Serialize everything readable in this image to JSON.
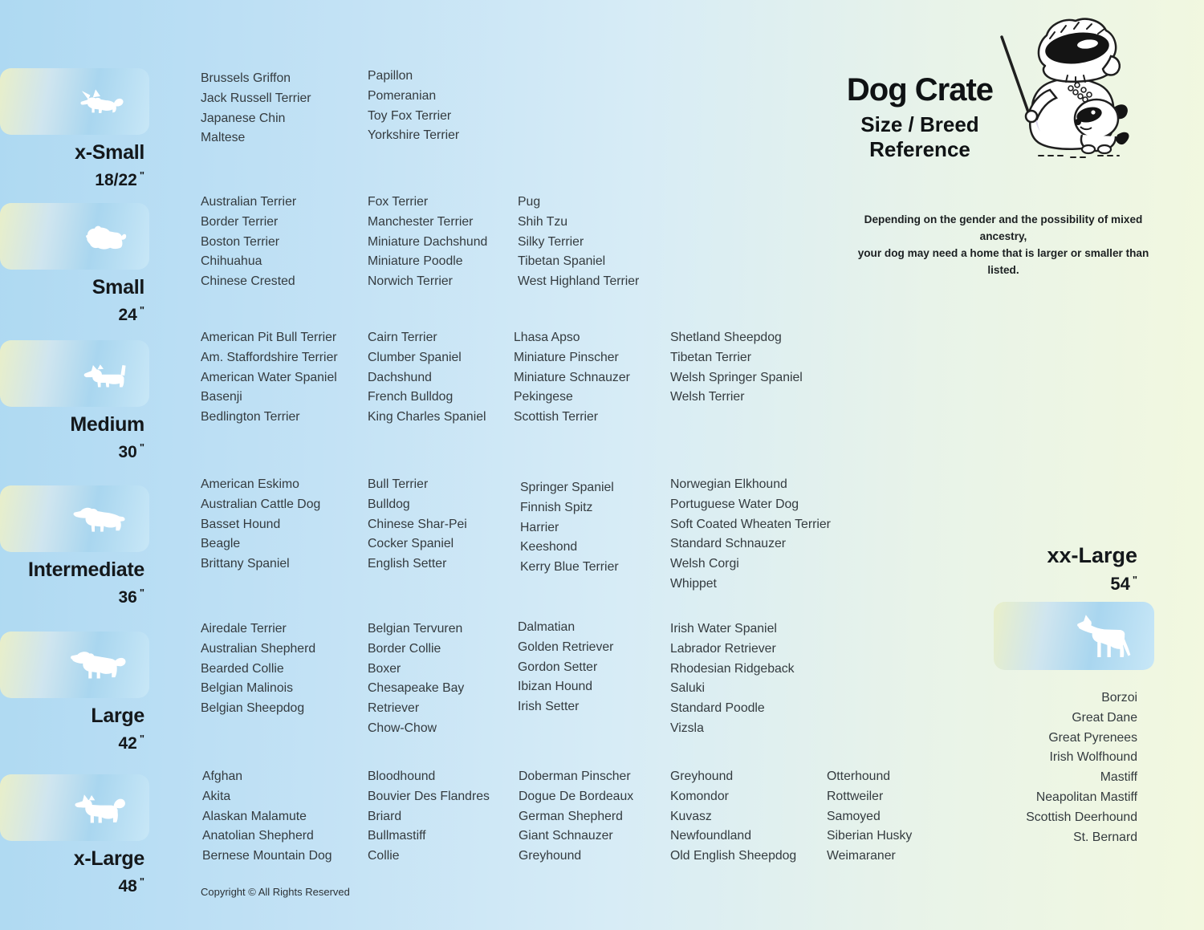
{
  "inch_mark": "\"",
  "header": {
    "title": "Dog Crate",
    "subtitle_line1": "Size / Breed",
    "subtitle_line2": "Reference",
    "disclaimer_line1": "Depending on the gender and the possibility of mixed ancestry,",
    "disclaimer_line2": "your dog may need a home that is larger or smaller than listed.",
    "mascot_icon": "sheepdog-teacher-with-puppy"
  },
  "sizes": [
    {
      "label": "x-Small",
      "dimension": "18/22",
      "icon": "papillon-silhouette",
      "columns": [
        [
          "Brussels Griffon",
          "Jack Russell Terrier",
          "Japanese Chin",
          "Maltese"
        ],
        [
          "Papillon",
          "Pomeranian",
          "Toy Fox Terrier",
          "Yorkshire Terrier"
        ]
      ]
    },
    {
      "label": "Small",
      "dimension": "24",
      "icon": "shih-tzu-silhouette",
      "columns": [
        [
          "Australian Terrier",
          "Border Terrier",
          "Boston Terrier",
          "Chihuahua",
          "Chinese Crested"
        ],
        [
          "Fox Terrier",
          "Manchester Terrier",
          "Miniature Dachshund",
          "Miniature Poodle",
          "Norwich Terrier"
        ],
        [
          "Pug",
          "Shih Tzu",
          "Silky Terrier",
          "Tibetan Spaniel",
          "West Highland Terrier"
        ]
      ]
    },
    {
      "label": "Medium",
      "dimension": "30",
      "icon": "west-highland-terrier-silhouette",
      "columns": [
        [
          "American Pit Bull Terrier",
          "Am. Staffordshire Terrier",
          "American Water Spaniel",
          "Basenji",
          "Bedlington Terrier"
        ],
        [
          "Cairn Terrier",
          "Clumber Spaniel",
          "Dachshund",
          "French Bulldog",
          "King Charles Spaniel"
        ],
        [
          "Lhasa Apso",
          "Miniature Pinscher",
          "Miniature Schnauzer",
          "Pekingese",
          "Scottish Terrier"
        ],
        [
          "Shetland Sheepdog",
          "Tibetan Terrier",
          "Welsh Springer Spaniel",
          "Welsh Terrier"
        ]
      ]
    },
    {
      "label": "Intermediate",
      "dimension": "36",
      "icon": "spaniel-silhouette",
      "columns": [
        [
          "American Eskimo",
          "Australian Cattle Dog",
          "Basset Hound",
          "Beagle",
          "Brittany Spaniel"
        ],
        [
          "Bull Terrier",
          "Bulldog",
          "Chinese Shar-Pei",
          "Cocker Spaniel",
          "English Setter"
        ],
        [
          "Springer Spaniel",
          "Finnish Spitz",
          "Harrier",
          "Keeshond",
          "Kerry Blue Terrier"
        ],
        [
          "Norwegian Elkhound",
          "Portuguese Water Dog",
          "Soft Coated Wheaten Terrier",
          "Standard Schnauzer",
          "Welsh Corgi",
          "Whippet"
        ]
      ]
    },
    {
      "label": "Large",
      "dimension": "42",
      "icon": "retriever-silhouette",
      "columns": [
        [
          "Airedale Terrier",
          "Australian Shepherd",
          "Bearded Collie",
          "Belgian Malinois",
          "Belgian Sheepdog"
        ],
        [
          "Belgian Tervuren",
          "Border Collie",
          "Boxer",
          "Chesapeake Bay Retriever",
          "Chow-Chow"
        ],
        [
          "Dalmatian",
          "Golden Retriever",
          "Gordon Setter",
          "Ibizan Hound",
          "Irish Setter"
        ],
        [
          "Irish Water Spaniel",
          "Labrador Retriever",
          "Rhodesian Ridgeback",
          "Saluki",
          "Standard Poodle",
          "Vizsla"
        ]
      ]
    },
    {
      "label": "x-Large",
      "dimension": "48",
      "icon": "akita-silhouette",
      "columns": [
        [
          "Afghan",
          "Akita",
          "Alaskan Malamute",
          "Anatolian Shepherd",
          "Bernese Mountain Dog"
        ],
        [
          "Bloodhound",
          "Bouvier Des Flandres",
          "Briard",
          "Bullmastiff",
          "Collie"
        ],
        [
          "Doberman Pinscher",
          "Dogue De Bordeaux",
          "German Shepherd",
          "Giant Schnauzer",
          "Greyhound"
        ],
        [
          "Greyhound",
          "Komondor",
          "Kuvasz",
          "Newfoundland",
          "Old English Sheepdog"
        ],
        [
          "Otterhound",
          "Rottweiler",
          "Samoyed",
          "Siberian Husky",
          "Weimaraner"
        ]
      ]
    }
  ],
  "xxlarge": {
    "label": "xx-Large",
    "dimension": "54",
    "icon": "great-dane-silhouette",
    "breeds": [
      "Borzoi",
      "Great Dane",
      "Great Pyrenees",
      "Irish Wolfhound",
      "Mastiff",
      "Neapolitan Mastiff",
      "Scottish Deerhound",
      "St. Bernard"
    ]
  },
  "footer": {
    "copyright": "Copyright © All Rights Reserved"
  },
  "colors": {
    "background_left": "#aed9f2",
    "background_right": "#f2f8df",
    "tile_blue": "#a9d6ef",
    "tile_yellow": "#e9efc9",
    "text": "#343b3f",
    "heading": "#14181b"
  }
}
